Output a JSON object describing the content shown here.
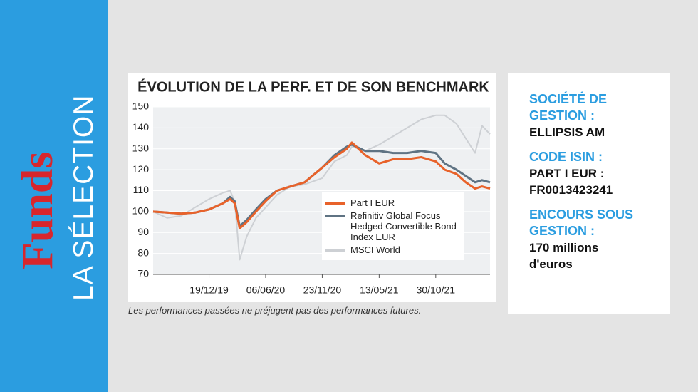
{
  "sidebar": {
    "brand": "Funds",
    "section": "LA SÉLECTION"
  },
  "chart_data": {
    "type": "line",
    "title": "ÉVOLUTION DE LA PERF. ET DE SON BENCHMARK",
    "x": [
      "04/07/19",
      "15/08/19",
      "26/09/19",
      "07/11/19",
      "19/12/19",
      "30/01/20",
      "20/02/20",
      "05/03/20",
      "20/03/20",
      "10/04/20",
      "08/05/20",
      "06/06/20",
      "10/07/20",
      "20/08/20",
      "01/10/20",
      "23/11/20",
      "30/12/20",
      "05/02/21",
      "20/02/21",
      "01/04/21",
      "13/05/21",
      "24/06/21",
      "05/08/21",
      "16/09/21",
      "30/10/21",
      "26/11/21",
      "31/12/21",
      "28/01/22",
      "25/02/22",
      "18/03/22",
      "11/04/22"
    ],
    "series": [
      {
        "name": "MSCI World",
        "color": "#cdd0d4",
        "values": [
          100,
          97,
          98,
          102,
          106,
          109,
          110,
          105,
          77,
          88,
          97,
          102,
          108,
          112,
          113,
          116,
          124,
          127,
          131,
          129,
          132,
          136,
          140,
          144,
          146,
          146,
          142,
          135,
          128,
          141,
          137
        ]
      },
      {
        "name": "Refinitiv Global Focus Hedged Convertible Bond Index EUR",
        "color": "#5f7383",
        "values": [
          100,
          99.5,
          99,
          99.5,
          101,
          104,
          107,
          105,
          93,
          96,
          101,
          106,
          110,
          112,
          114,
          121,
          127,
          131,
          132,
          129,
          129,
          128,
          128,
          129,
          128,
          123,
          120,
          117,
          114,
          115,
          114
        ]
      },
      {
        "name": "Part I EUR",
        "color": "#e8622a",
        "values": [
          100,
          99.5,
          99,
          99.5,
          101,
          104,
          106,
          104,
          92,
          95,
          100,
          105,
          110,
          112,
          114,
          121,
          126,
          130,
          133,
          127,
          123,
          125,
          125,
          126,
          124,
          120,
          118,
          114,
          111,
          112,
          111
        ]
      }
    ],
    "legend_order": [
      2,
      1,
      0
    ],
    "xlim": [
      "04/07/19",
      "11/04/22"
    ],
    "xticks": [
      "19/12/19",
      "06/06/20",
      "23/11/20",
      "13/05/21",
      "30/10/21"
    ],
    "ylim": [
      70,
      150
    ],
    "yticks": [
      70,
      80,
      90,
      100,
      110,
      120,
      130,
      140,
      150
    ],
    "grid": true
  },
  "footnote": "Les performances passées ne préjugent pas des performances futures.",
  "info": [
    {
      "label": "SOCIÉTÉ DE GESTION :",
      "value": "ELLIPSIS AM"
    },
    {
      "label": "CODE ISIN :",
      "value": "PART I EUR : FR0013423241"
    },
    {
      "label": "ENCOURS SOUS GESTION :",
      "value": "170 millions d'euros"
    }
  ]
}
